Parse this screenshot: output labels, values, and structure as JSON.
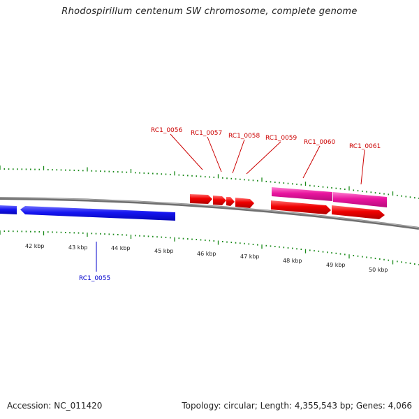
{
  "title": "Rhodospirillum centenum SW chromosome, complete genome",
  "footer": {
    "accession": "Accession: NC_011420",
    "summary": "Topology: circular; Length: 4,355,543 bp; Genes: 4,066"
  },
  "colors": {
    "backbone": "#7d7d7d",
    "tick": "#1a8a1a",
    "forward_gene": "#ee0000",
    "reverse_gene": "#1010ee",
    "cds_track": "#e0109a",
    "label_forward": "#cc0000",
    "label_reverse": "#0000cc"
  },
  "kbp_labels": [
    "42 kbp",
    "43 kbp",
    "44 kbp",
    "45 kbp",
    "46 kbp",
    "47 kbp",
    "48 kbp",
    "49 kbp",
    "50 kbp"
  ],
  "gene_labels": [
    {
      "text": "RC1_0055",
      "strand": "reverse"
    },
    {
      "text": "RC1_0056",
      "strand": "forward"
    },
    {
      "text": "RC1_0057",
      "strand": "forward"
    },
    {
      "text": "RC1_0058",
      "strand": "forward"
    },
    {
      "text": "RC1_0059",
      "strand": "forward"
    },
    {
      "text": "RC1_0060",
      "strand": "forward"
    },
    {
      "text": "RC1_0061",
      "strand": "forward"
    }
  ]
}
